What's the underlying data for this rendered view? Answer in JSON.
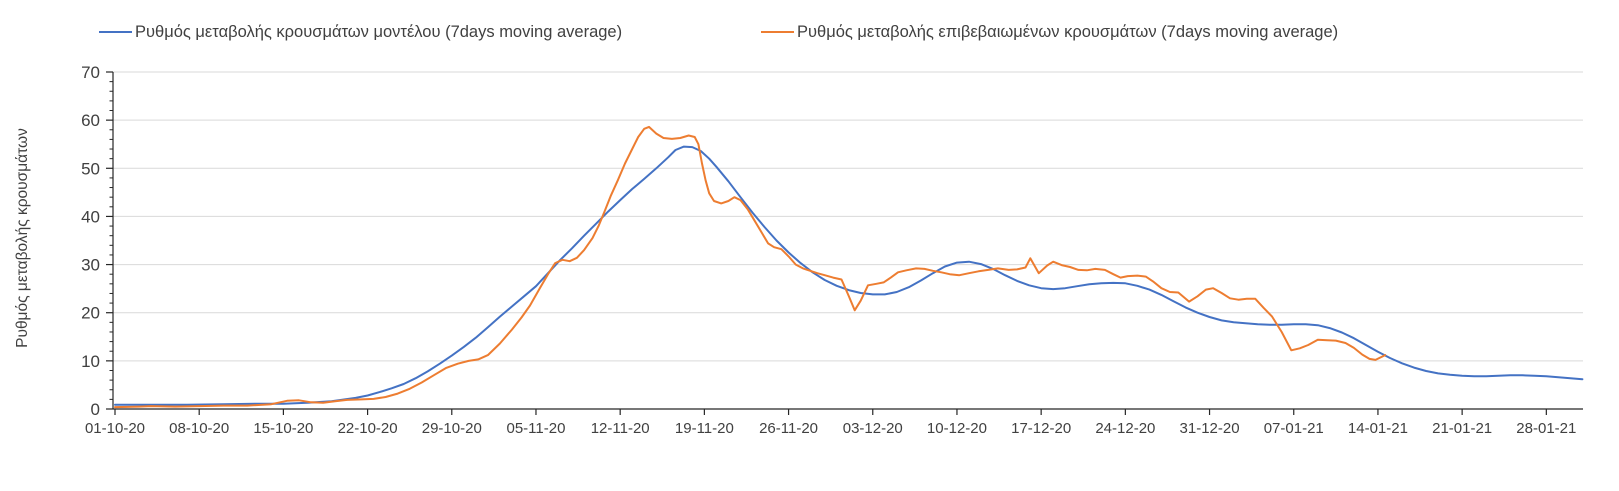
{
  "chart_data": {
    "type": "line",
    "title": "",
    "xlabel": "",
    "ylabel": "Ρυθμός μεταβολής κρουσμάτων",
    "ylim": [
      0,
      70
    ],
    "y_ticks": [
      0,
      10,
      20,
      30,
      40,
      50,
      60,
      70
    ],
    "y_minor_tick_step": 2,
    "grid": "horizontal",
    "legend_position": "top",
    "x_tick_interval_days": 7,
    "x_range_days": [
      0,
      122.2
    ],
    "x_tick_labels": [
      "01-10-20",
      "08-10-20",
      "15-10-20",
      "22-10-20",
      "29-10-20",
      "05-11-20",
      "12-11-20",
      "19-11-20",
      "26-11-20",
      "03-12-20",
      "10-12-20",
      "17-12-20",
      "24-12-20",
      "31-12-20",
      "07-01-21",
      "14-01-21",
      "21-01-21",
      "28-01-21"
    ],
    "colors": {
      "model_series": "#4472C4",
      "confirmed_series": "#ED7D31",
      "gridline": "#D9D9D9",
      "axis": "#262626",
      "tick_label": "#404040"
    },
    "series": [
      {
        "name": "Ρυθμός μεταβολής κρουσμάτων μοντέλου (7days moving average)",
        "color": "#4472C4",
        "points": [
          [
            0,
            0.9
          ],
          [
            3,
            0.9
          ],
          [
            6,
            0.9
          ],
          [
            9,
            1
          ],
          [
            12,
            1.1
          ],
          [
            14,
            1.1
          ],
          [
            16,
            1.3
          ],
          [
            18,
            1.6
          ],
          [
            20,
            2.3
          ],
          [
            21,
            2.8
          ],
          [
            22,
            3.5
          ],
          [
            23,
            4.3
          ],
          [
            24,
            5.2
          ],
          [
            25,
            6.4
          ],
          [
            26,
            7.8
          ],
          [
            27,
            9.4
          ],
          [
            28,
            11.1
          ],
          [
            29,
            12.9
          ],
          [
            30,
            14.8
          ],
          [
            31,
            17
          ],
          [
            32,
            19.2
          ],
          [
            33,
            21.3
          ],
          [
            34,
            23.4
          ],
          [
            35,
            25.5
          ],
          [
            36,
            28.2
          ],
          [
            37,
            30.9
          ],
          [
            38,
            33.4
          ],
          [
            39,
            36
          ],
          [
            40,
            38.5
          ],
          [
            41,
            41
          ],
          [
            42,
            43.4
          ],
          [
            43,
            45.7
          ],
          [
            44,
            47.8
          ],
          [
            45,
            50
          ],
          [
            46,
            52.3
          ],
          [
            46.6,
            53.8
          ],
          [
            47.3,
            54.5
          ],
          [
            48,
            54.4
          ],
          [
            48.7,
            53.6
          ],
          [
            49.4,
            52
          ],
          [
            50,
            50.3
          ],
          [
            51,
            47.3
          ],
          [
            52,
            44
          ],
          [
            53,
            40.8
          ],
          [
            54,
            37.8
          ],
          [
            55,
            35
          ],
          [
            56,
            32.5
          ],
          [
            57,
            30.3
          ],
          [
            58,
            28.4
          ],
          [
            59,
            26.8
          ],
          [
            60,
            25.6
          ],
          [
            61,
            24.7
          ],
          [
            62,
            24.1
          ],
          [
            63,
            23.8
          ],
          [
            64,
            23.8
          ],
          [
            65,
            24.3
          ],
          [
            66,
            25.3
          ],
          [
            67,
            26.7
          ],
          [
            68,
            28.2
          ],
          [
            69,
            29.6
          ],
          [
            70,
            30.4
          ],
          [
            71,
            30.6
          ],
          [
            72,
            30.1
          ],
          [
            73,
            29.1
          ],
          [
            74,
            27.8
          ],
          [
            75,
            26.6
          ],
          [
            76,
            25.7
          ],
          [
            77,
            25.1
          ],
          [
            78,
            24.9
          ],
          [
            79,
            25.1
          ],
          [
            80,
            25.5
          ],
          [
            81,
            25.9
          ],
          [
            82,
            26.1
          ],
          [
            83,
            26.2
          ],
          [
            84,
            26.1
          ],
          [
            85,
            25.6
          ],
          [
            86,
            24.8
          ],
          [
            87,
            23.7
          ],
          [
            88,
            22.4
          ],
          [
            89,
            21.1
          ],
          [
            90,
            20
          ],
          [
            91,
            19.1
          ],
          [
            92,
            18.4
          ],
          [
            93,
            18
          ],
          [
            94,
            17.8
          ],
          [
            95,
            17.6
          ],
          [
            96,
            17.5
          ],
          [
            97,
            17.5
          ],
          [
            98,
            17.6
          ],
          [
            99,
            17.6
          ],
          [
            100,
            17.4
          ],
          [
            101,
            16.8
          ],
          [
            102,
            15.9
          ],
          [
            103,
            14.7
          ],
          [
            104,
            13.3
          ],
          [
            105,
            11.9
          ],
          [
            106,
            10.6
          ],
          [
            107,
            9.5
          ],
          [
            108,
            8.6
          ],
          [
            109,
            7.9
          ],
          [
            110,
            7.4
          ],
          [
            111,
            7.1
          ],
          [
            112,
            6.9
          ],
          [
            113,
            6.8
          ],
          [
            114,
            6.8
          ],
          [
            115,
            6.9
          ],
          [
            116,
            7
          ],
          [
            117,
            7
          ],
          [
            118,
            6.9
          ],
          [
            119,
            6.8
          ],
          [
            120,
            6.6
          ],
          [
            121,
            6.4
          ],
          [
            122,
            6.2
          ]
        ]
      },
      {
        "name": "Ρυθμός μεταβολής επιβεβαιωμένων κρουσμάτων (7days moving average)",
        "color": "#ED7D31",
        "points": [
          [
            0,
            0.4
          ],
          [
            2,
            0.5
          ],
          [
            3,
            0.6
          ],
          [
            5,
            0.5
          ],
          [
            7,
            0.6
          ],
          [
            9,
            0.7
          ],
          [
            11,
            0.7
          ],
          [
            13,
            1
          ],
          [
            14.3,
            1.7
          ],
          [
            15.3,
            1.8
          ],
          [
            16.3,
            1.4
          ],
          [
            17.3,
            1.3
          ],
          [
            18.3,
            1.6
          ],
          [
            19.3,
            1.9
          ],
          [
            20.5,
            2
          ],
          [
            21.5,
            2.1
          ],
          [
            22.5,
            2.5
          ],
          [
            23.5,
            3.2
          ],
          [
            24.5,
            4.2
          ],
          [
            25.5,
            5.5
          ],
          [
            26.5,
            7
          ],
          [
            27.5,
            8.5
          ],
          [
            28.5,
            9.4
          ],
          [
            29.4,
            10
          ],
          [
            30.2,
            10.3
          ],
          [
            31,
            11.2
          ],
          [
            32,
            13.6
          ],
          [
            33,
            16.5
          ],
          [
            33.8,
            19
          ],
          [
            34.5,
            21.5
          ],
          [
            35.3,
            25
          ],
          [
            36,
            28
          ],
          [
            36.6,
            30.3
          ],
          [
            37.2,
            31
          ],
          [
            37.8,
            30.7
          ],
          [
            38.4,
            31.4
          ],
          [
            39,
            33
          ],
          [
            39.7,
            35.5
          ],
          [
            40.2,
            38
          ],
          [
            40.7,
            41
          ],
          [
            41.2,
            44.2
          ],
          [
            41.8,
            47.5
          ],
          [
            42.4,
            51
          ],
          [
            43,
            54
          ],
          [
            43.5,
            56.5
          ],
          [
            44,
            58.2
          ],
          [
            44.4,
            58.6
          ],
          [
            45,
            57.2
          ],
          [
            45.6,
            56.3
          ],
          [
            46.3,
            56.1
          ],
          [
            47,
            56.3
          ],
          [
            47.7,
            56.8
          ],
          [
            48.2,
            56.5
          ],
          [
            48.5,
            55
          ],
          [
            48.8,
            51
          ],
          [
            49.1,
            47.5
          ],
          [
            49.4,
            44.8
          ],
          [
            49.8,
            43.2
          ],
          [
            50.4,
            42.7
          ],
          [
            51,
            43.2
          ],
          [
            51.5,
            44
          ],
          [
            52,
            43.4
          ],
          [
            52.6,
            41.5
          ],
          [
            53.2,
            39
          ],
          [
            53.8,
            36.5
          ],
          [
            54.3,
            34.4
          ],
          [
            54.8,
            33.6
          ],
          [
            55.4,
            33.2
          ],
          [
            56,
            31.7
          ],
          [
            56.6,
            30
          ],
          [
            57.2,
            29.2
          ],
          [
            57.8,
            28.7
          ],
          [
            58.4,
            28.2
          ],
          [
            59,
            27.8
          ],
          [
            59.7,
            27.3
          ],
          [
            60.4,
            26.9
          ],
          [
            61,
            23.5
          ],
          [
            61.5,
            20.5
          ],
          [
            62,
            22.5
          ],
          [
            62.6,
            25.7
          ],
          [
            63.3,
            26
          ],
          [
            63.9,
            26.3
          ],
          [
            64.5,
            27.3
          ],
          [
            65.1,
            28.4
          ],
          [
            65.8,
            28.8
          ],
          [
            66.6,
            29.2
          ],
          [
            67.3,
            29.1
          ],
          [
            68,
            28.7
          ],
          [
            68.7,
            28.4
          ],
          [
            69.4,
            28
          ],
          [
            70.2,
            27.8
          ],
          [
            71,
            28.2
          ],
          [
            71.8,
            28.6
          ],
          [
            72.6,
            28.9
          ],
          [
            73.4,
            29.2
          ],
          [
            74.3,
            28.9
          ],
          [
            75,
            29
          ],
          [
            75.7,
            29.4
          ],
          [
            76.1,
            31.3
          ],
          [
            76.8,
            28.2
          ],
          [
            77.5,
            29.8
          ],
          [
            78,
            30.6
          ],
          [
            78.7,
            29.9
          ],
          [
            79.4,
            29.5
          ],
          [
            80.1,
            28.9
          ],
          [
            80.8,
            28.8
          ],
          [
            81.5,
            29.1
          ],
          [
            82.3,
            28.9
          ],
          [
            83,
            28
          ],
          [
            83.6,
            27.3
          ],
          [
            84.2,
            27.6
          ],
          [
            85,
            27.7
          ],
          [
            85.7,
            27.5
          ],
          [
            86.3,
            26.5
          ],
          [
            87,
            25.1
          ],
          [
            87.7,
            24.3
          ],
          [
            88.4,
            24.2
          ],
          [
            89.3,
            22.3
          ],
          [
            90,
            23.4
          ],
          [
            90.7,
            24.8
          ],
          [
            91.3,
            25.1
          ],
          [
            92,
            24.1
          ],
          [
            92.7,
            23
          ],
          [
            93.4,
            22.7
          ],
          [
            94.1,
            22.9
          ],
          [
            94.8,
            22.9
          ],
          [
            95.5,
            21
          ],
          [
            96.2,
            19.2
          ],
          [
            97,
            16
          ],
          [
            97.8,
            12.2
          ],
          [
            98.5,
            12.6
          ],
          [
            99.2,
            13.3
          ],
          [
            100,
            14.4
          ],
          [
            100.8,
            14.3
          ],
          [
            101.5,
            14.2
          ],
          [
            102.3,
            13.7
          ],
          [
            103,
            12.7
          ],
          [
            103.7,
            11.3
          ],
          [
            104.3,
            10.4
          ],
          [
            104.8,
            10.2
          ],
          [
            105.6,
            11.2
          ]
        ]
      }
    ]
  }
}
